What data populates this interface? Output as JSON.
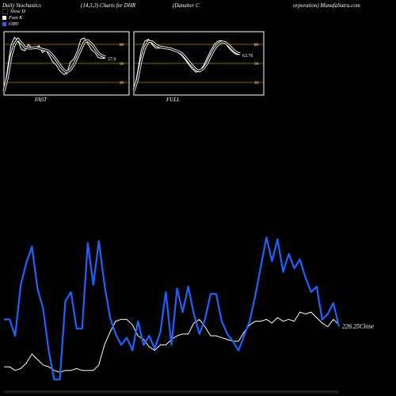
{
  "header": {
    "title_left": "Daily Stochastics",
    "params": "(14,3,3) Charts for DHR",
    "company": "(Danaher C",
    "company_cont": "orporation) MunafaSutra.com"
  },
  "legend": [
    {
      "label": "Slow  D",
      "color": "#000000"
    },
    {
      "label": "Fast K",
      "color": "#ffffff"
    },
    {
      "label": "OBV",
      "color": "#1e63ff"
    }
  ],
  "colors": {
    "obv": "#1e63ff",
    "close": "#ffffff",
    "level": "#b8860b",
    "panel_border": "#ffffff"
  },
  "chart_data": [
    {
      "type": "line",
      "panel": "FAST",
      "label": "FAST",
      "ylim": [
        0,
        100
      ],
      "levels": [
        80,
        50,
        20
      ],
      "last_value_label": "57.9",
      "series": [
        {
          "name": "Fast K",
          "values": [
            4,
            40,
            78,
            91,
            86,
            72,
            70,
            80,
            74,
            73,
            78,
            67,
            71,
            62,
            52,
            47,
            38,
            33,
            34,
            52,
            57,
            70,
            88,
            90,
            81,
            72,
            67,
            59,
            58,
            58
          ]
        },
        {
          "name": "Slow D",
          "values": [
            6,
            28,
            60,
            80,
            88,
            82,
            75,
            74,
            74,
            75,
            74,
            72,
            71,
            68,
            62,
            55,
            47,
            40,
            36,
            40,
            48,
            60,
            72,
            84,
            86,
            81,
            74,
            66,
            62,
            60
          ]
        }
      ]
    },
    {
      "type": "line",
      "panel": "FULL",
      "label": "FULL",
      "ylim": [
        0,
        100
      ],
      "levels": [
        80,
        50,
        20
      ],
      "last_value_label": "63.76",
      "series": [
        {
          "name": "Fast K",
          "values": [
            5,
            35,
            70,
            85,
            88,
            80,
            74,
            74,
            75,
            74,
            72,
            70,
            68,
            63,
            56,
            48,
            41,
            36,
            38,
            46,
            58,
            70,
            80,
            85,
            86,
            82,
            74,
            68,
            64,
            64
          ]
        },
        {
          "name": "Slow D",
          "values": [
            7,
            25,
            55,
            75,
            85,
            84,
            79,
            76,
            75,
            74,
            73,
            71,
            69,
            66,
            60,
            53,
            46,
            40,
            38,
            42,
            50,
            62,
            73,
            80,
            84,
            83,
            78,
            72,
            67,
            65
          ]
        }
      ]
    },
    {
      "type": "line",
      "panel": "main",
      "ylim": [
        0,
        100
      ],
      "close_label": "226.25Close",
      "series": [
        {
          "name": "OBV",
          "values": [
            29,
            29,
            20,
            48,
            60,
            69,
            46,
            35,
            12,
            -4,
            -4,
            39,
            44,
            24,
            24,
            71,
            48,
            72,
            48,
            30,
            21,
            15,
            19,
            12,
            28,
            15,
            20,
            13,
            22,
            44,
            15,
            46,
            33,
            47,
            32,
            21,
            29,
            43,
            43,
            28,
            21,
            17,
            12,
            20,
            28,
            42,
            58,
            74,
            61,
            73,
            55,
            65,
            57,
            62,
            52,
            44,
            47,
            29,
            32,
            38,
            25
          ],
          "color": "#1e63ff"
        },
        {
          "name": "Close",
          "values": [
            3,
            3,
            1,
            2,
            5,
            10,
            7,
            4,
            3,
            1,
            0,
            1,
            1,
            2,
            1,
            1,
            1,
            4,
            15,
            22,
            28,
            29,
            29,
            26,
            20,
            18,
            14,
            12,
            15,
            15,
            18,
            20,
            21,
            21,
            27,
            29,
            25,
            20,
            20,
            19,
            18,
            17,
            17,
            22,
            26,
            28,
            28,
            29,
            27,
            30,
            28,
            29,
            28,
            33,
            32,
            33,
            30,
            27,
            25,
            29,
            26
          ],
          "color": "#ffffff"
        }
      ]
    }
  ]
}
